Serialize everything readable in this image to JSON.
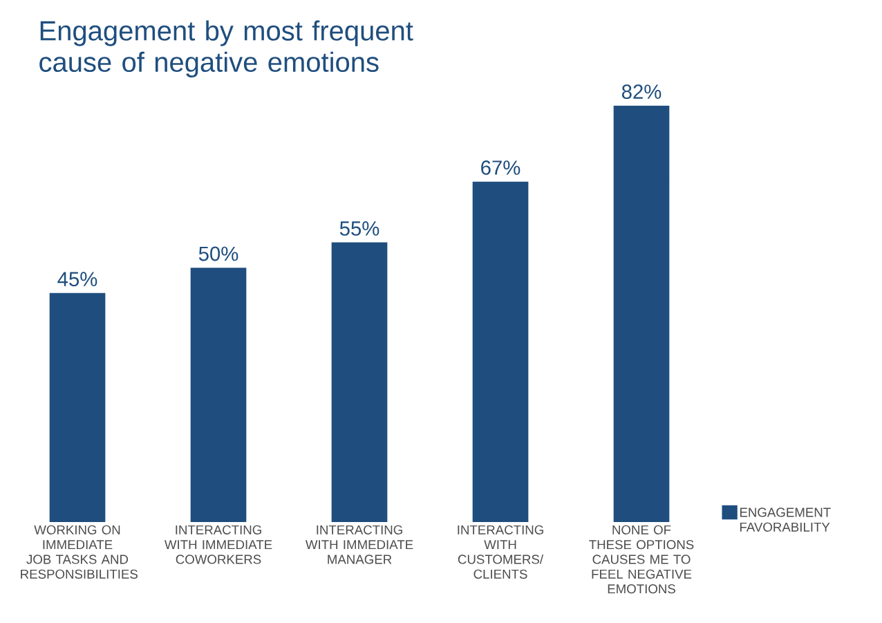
{
  "chart_data": {
    "type": "bar",
    "title": "Engagement by most frequent cause of negative emotions",
    "categories": [
      "WORKING ON IMMEDIATE JOB TASKS AND RESPONSIBILITIES",
      "INTERACTING WITH IMMEDIATE COWORKERS",
      "INTERACTING WITH IMMEDIATE MANAGER",
      "INTERACTING WITH CUSTOMERS/ CLIENTS",
      "NONE OF THESE OPTIONS CAUSES ME TO FEEL NEGATIVE EMOTIONS"
    ],
    "series": [
      {
        "name": "ENGAGEMENT FAVORABILITY",
        "color": "#1f4e7e",
        "values": [
          45,
          50,
          55,
          67,
          82
        ],
        "value_labels": [
          "45%",
          "50%",
          "55%",
          "67%",
          "82%"
        ]
      }
    ],
    "legend": "right"
  }
}
